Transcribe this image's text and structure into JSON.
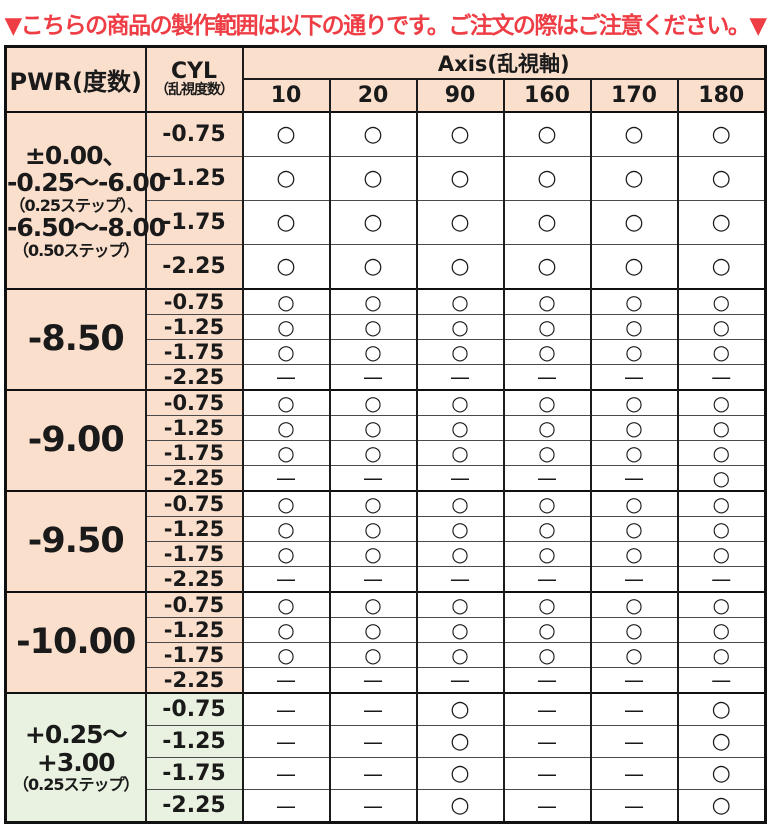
{
  "title": "▼こちらの商品の製作範囲は以下の通りです。ご注文の際はご注意ください。▼",
  "colors": {
    "accent_red": "#ee3d44",
    "peach": "#fbdfcd",
    "green": "#e9f2e1",
    "border": "#111111"
  },
  "legend": {
    "available_mark": "○",
    "unavailable_mark": "—"
  },
  "table": {
    "header": {
      "pwr": "PWR(度数)",
      "cyl_line1": "CYL",
      "cyl_line2": "（乱視度数）",
      "axis": "Axis(乱視軸)",
      "axis_values": [
        "10",
        "20",
        "90",
        "160",
        "170",
        "180"
      ]
    },
    "groups": [
      {
        "pwr_lines": [
          "±0.00、",
          "-0.25〜-6.00",
          "（0.25ステップ）、",
          "-6.50〜-8.00",
          "（0.50ステップ）"
        ],
        "theme": "peach",
        "rows": [
          {
            "cyl": "-0.75",
            "marks": [
              "○",
              "○",
              "○",
              "○",
              "○",
              "○"
            ]
          },
          {
            "cyl": "-1.25",
            "marks": [
              "○",
              "○",
              "○",
              "○",
              "○",
              "○"
            ]
          },
          {
            "cyl": "-1.75",
            "marks": [
              "○",
              "○",
              "○",
              "○",
              "○",
              "○"
            ]
          },
          {
            "cyl": "-2.25",
            "marks": [
              "○",
              "○",
              "○",
              "○",
              "○",
              "○"
            ]
          }
        ]
      },
      {
        "pwr_lines": [
          "-8.50"
        ],
        "theme": "peach",
        "rows": [
          {
            "cyl": "-0.75",
            "marks": [
              "○",
              "○",
              "○",
              "○",
              "○",
              "○"
            ]
          },
          {
            "cyl": "-1.25",
            "marks": [
              "○",
              "○",
              "○",
              "○",
              "○",
              "○"
            ]
          },
          {
            "cyl": "-1.75",
            "marks": [
              "○",
              "○",
              "○",
              "○",
              "○",
              "○"
            ]
          },
          {
            "cyl": "-2.25",
            "marks": [
              "—",
              "—",
              "—",
              "—",
              "—",
              "—"
            ]
          }
        ]
      },
      {
        "pwr_lines": [
          "-9.00"
        ],
        "theme": "peach",
        "rows": [
          {
            "cyl": "-0.75",
            "marks": [
              "○",
              "○",
              "○",
              "○",
              "○",
              "○"
            ]
          },
          {
            "cyl": "-1.25",
            "marks": [
              "○",
              "○",
              "○",
              "○",
              "○",
              "○"
            ]
          },
          {
            "cyl": "-1.75",
            "marks": [
              "○",
              "○",
              "○",
              "○",
              "○",
              "○"
            ]
          },
          {
            "cyl": "-2.25",
            "marks": [
              "—",
              "—",
              "—",
              "—",
              "—",
              "○"
            ]
          }
        ]
      },
      {
        "pwr_lines": [
          "-9.50"
        ],
        "theme": "peach",
        "rows": [
          {
            "cyl": "-0.75",
            "marks": [
              "○",
              "○",
              "○",
              "○",
              "○",
              "○"
            ]
          },
          {
            "cyl": "-1.25",
            "marks": [
              "○",
              "○",
              "○",
              "○",
              "○",
              "○"
            ]
          },
          {
            "cyl": "-1.75",
            "marks": [
              "○",
              "○",
              "○",
              "○",
              "○",
              "○"
            ]
          },
          {
            "cyl": "-2.25",
            "marks": [
              "—",
              "—",
              "—",
              "—",
              "—",
              "—"
            ]
          }
        ]
      },
      {
        "pwr_lines": [
          "-10.00"
        ],
        "theme": "peach",
        "rows": [
          {
            "cyl": "-0.75",
            "marks": [
              "○",
              "○",
              "○",
              "○",
              "○",
              "○"
            ]
          },
          {
            "cyl": "-1.25",
            "marks": [
              "○",
              "○",
              "○",
              "○",
              "○",
              "○"
            ]
          },
          {
            "cyl": "-1.75",
            "marks": [
              "○",
              "○",
              "○",
              "○",
              "○",
              "○"
            ]
          },
          {
            "cyl": "-2.25",
            "marks": [
              "—",
              "—",
              "—",
              "—",
              "—",
              "—"
            ]
          }
        ]
      },
      {
        "pwr_lines": [
          "+0.25〜",
          "+3.00",
          "（0.25ステップ）"
        ],
        "theme": "green",
        "rows": [
          {
            "cyl": "-0.75",
            "marks": [
              "—",
              "—",
              "○",
              "—",
              "—",
              "○"
            ]
          },
          {
            "cyl": "-1.25",
            "marks": [
              "—",
              "—",
              "○",
              "—",
              "—",
              "○"
            ]
          },
          {
            "cyl": "-1.75",
            "marks": [
              "—",
              "—",
              "○",
              "—",
              "—",
              "○"
            ]
          },
          {
            "cyl": "-2.25",
            "marks": [
              "—",
              "—",
              "○",
              "—",
              "—",
              "○"
            ]
          }
        ]
      }
    ]
  }
}
